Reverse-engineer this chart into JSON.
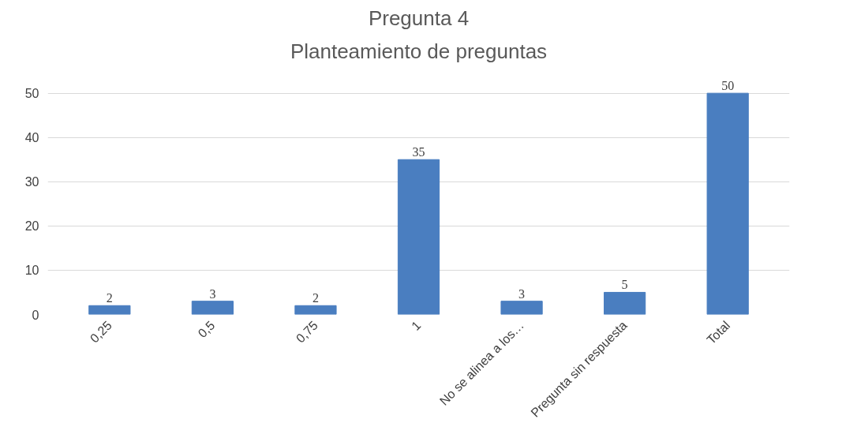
{
  "chart_data": {
    "type": "bar",
    "title": "Pregunta 4",
    "subtitle": "Planteamiento de preguntas",
    "categories": [
      "0,25",
      "0,5",
      "0,75",
      "1",
      "No se alinea a los…",
      "Pregunta sin respuesta",
      "Total"
    ],
    "values": [
      2,
      3,
      2,
      35,
      3,
      5,
      50
    ],
    "color": "#4a7ec0",
    "ylim": [
      0,
      50
    ],
    "yticks": [
      0,
      10,
      20,
      30,
      40,
      50
    ],
    "grid": "y",
    "data_labels": true
  }
}
